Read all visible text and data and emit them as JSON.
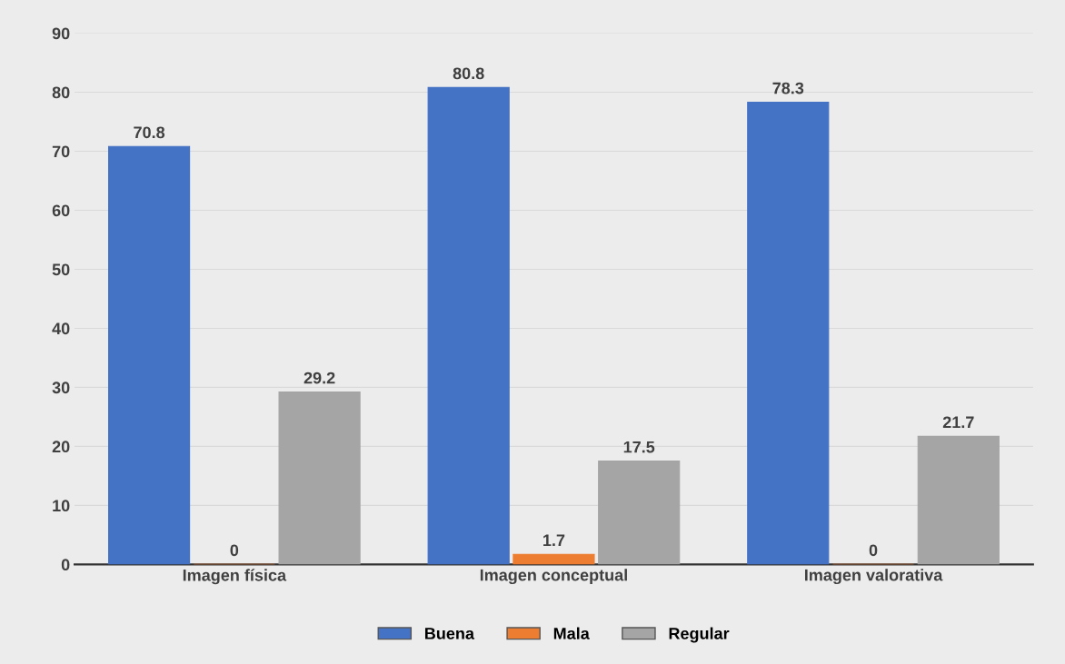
{
  "chart_data": {
    "type": "bar",
    "categories": [
      "Imagen física",
      "Imagen conceptual",
      "Imagen valorativa"
    ],
    "series": [
      {
        "name": "Buena",
        "color": "#4472c4",
        "values": [
          70.8,
          80.8,
          78.3
        ]
      },
      {
        "name": "Mala",
        "color": "#ed7d31",
        "values": [
          0,
          1.7,
          0
        ]
      },
      {
        "name": "Regular",
        "color": "#a5a5a5",
        "values": [
          29.2,
          17.5,
          21.7
        ]
      }
    ],
    "ylim": [
      0,
      90
    ],
    "yticks": [
      0,
      10,
      20,
      30,
      40,
      50,
      60,
      70,
      80,
      90
    ],
    "grid": "y",
    "legend": "bottom",
    "data_labels": true
  }
}
